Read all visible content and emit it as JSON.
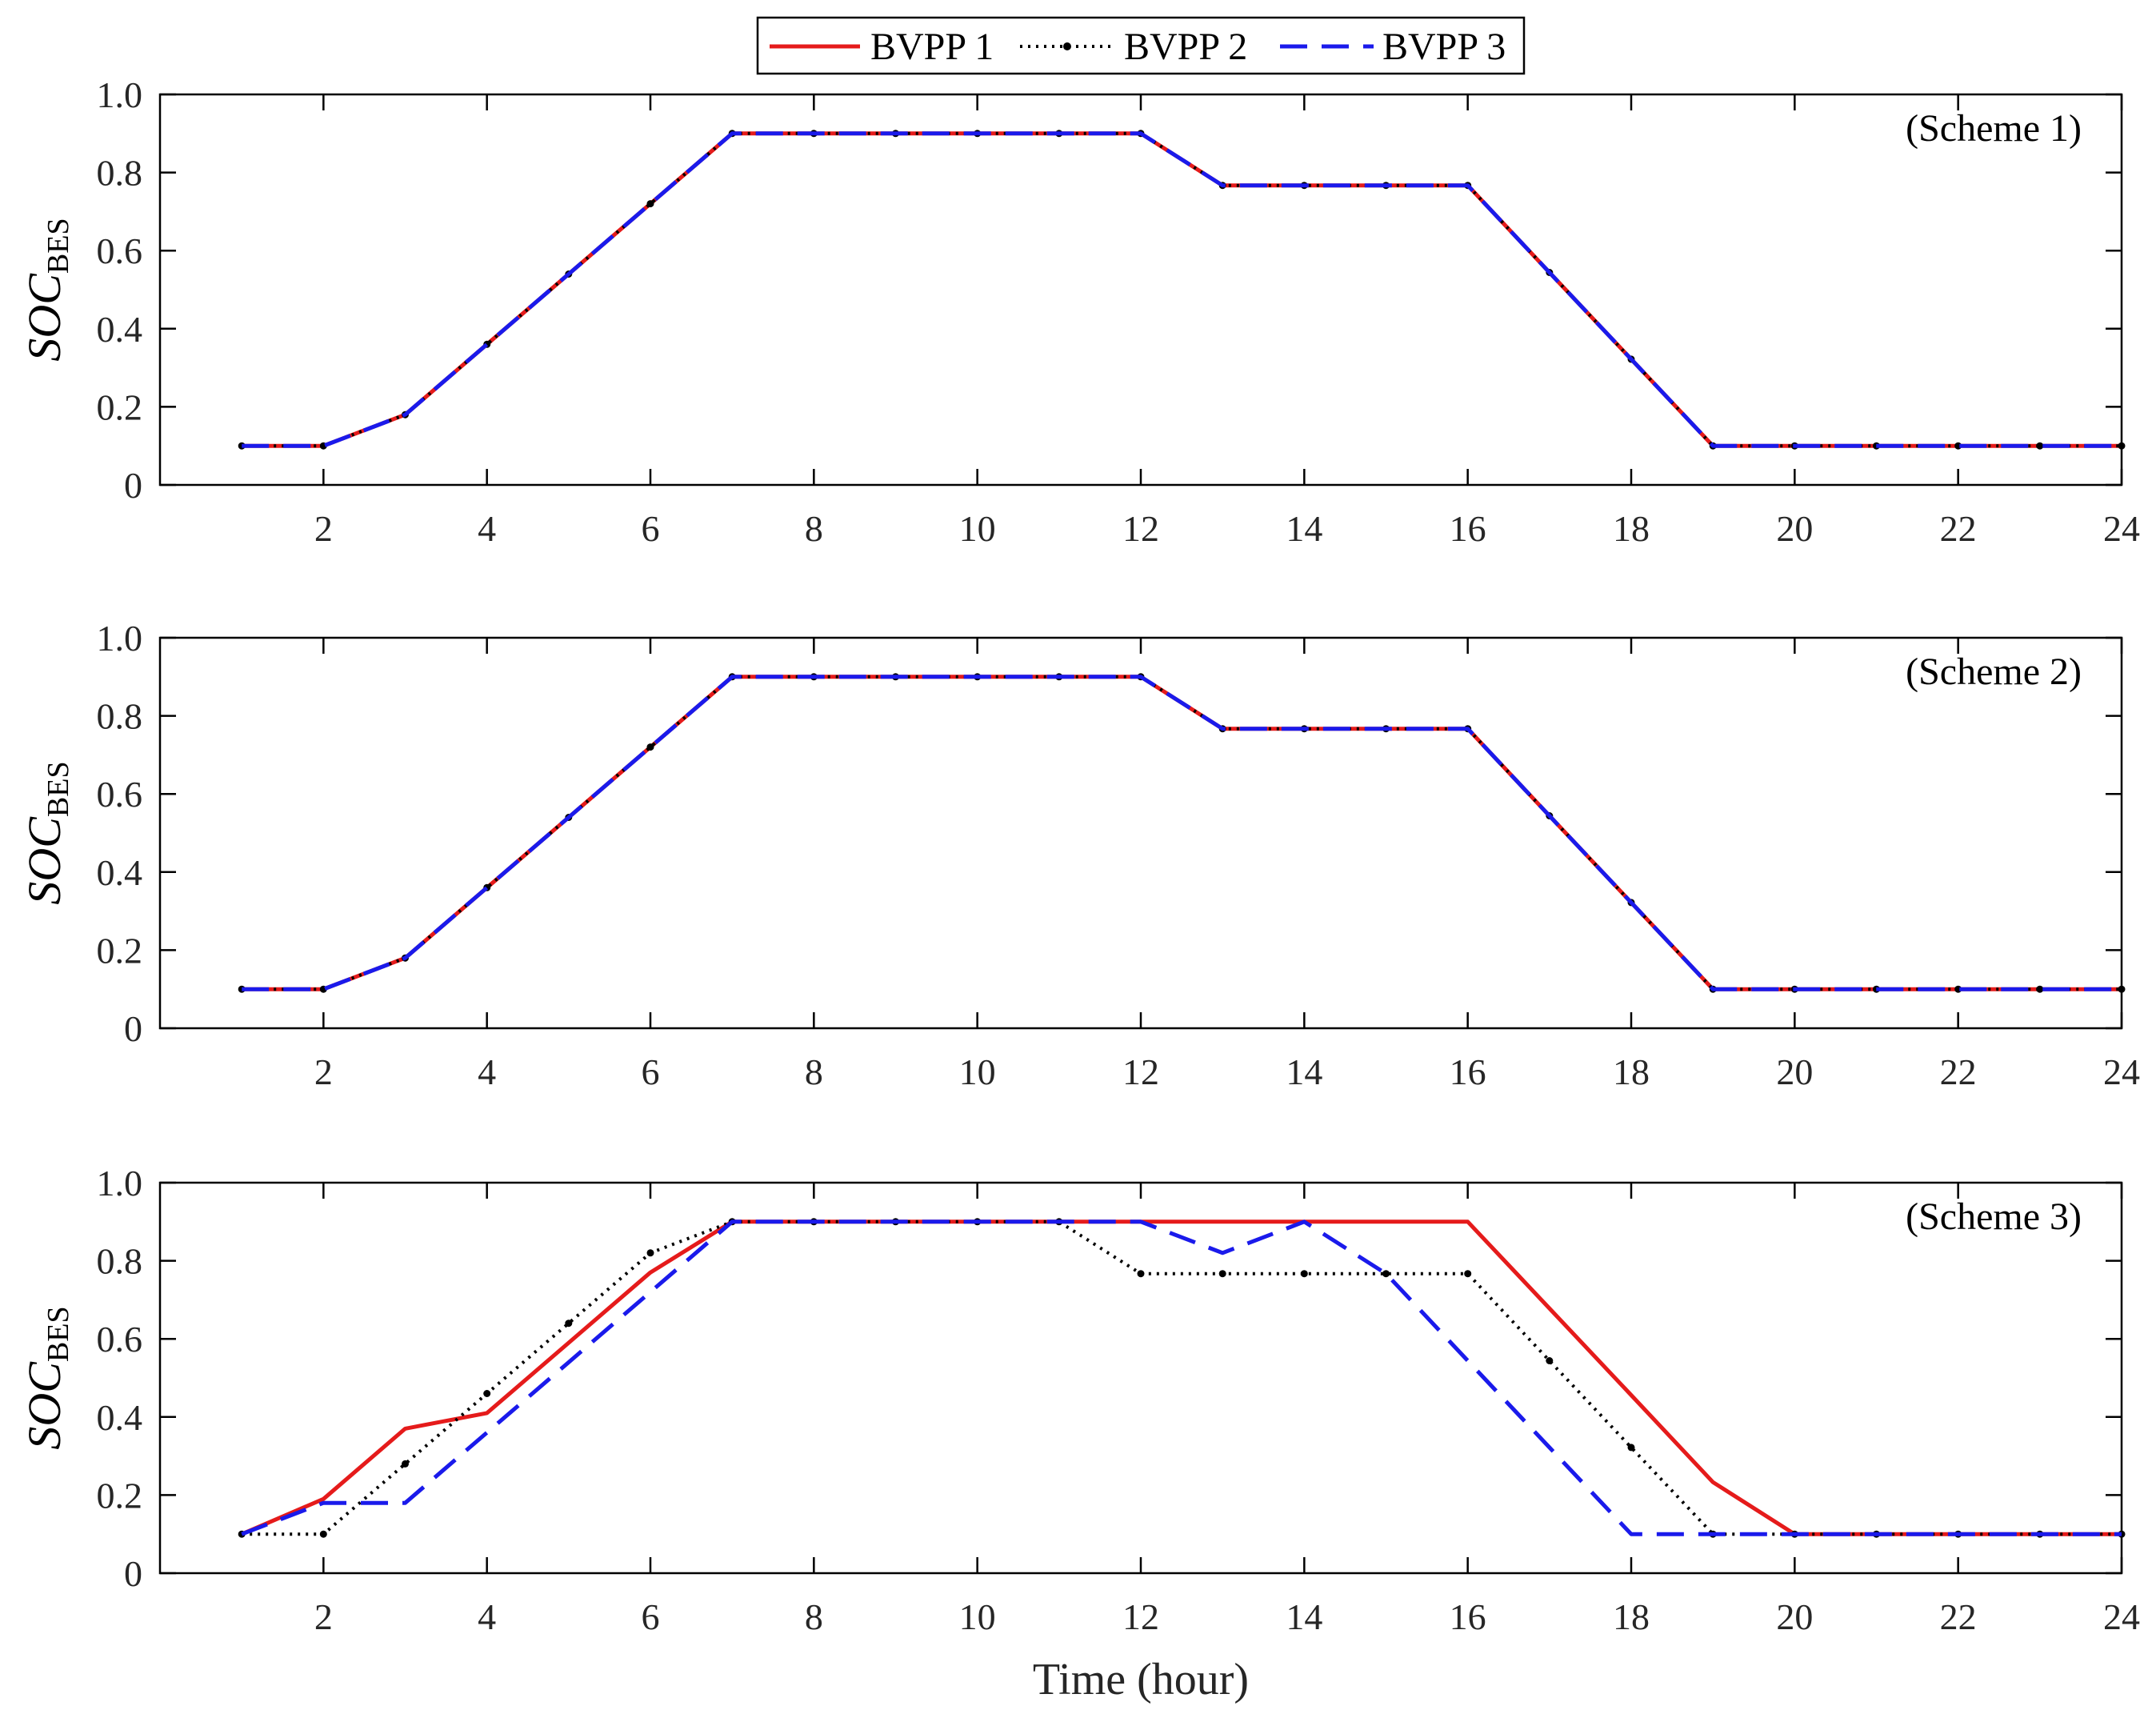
{
  "chart_data": [
    {
      "type": "line",
      "annotation": "(Scheme 1)",
      "ylabel_main": "SOC",
      "ylabel_sub": "BES",
      "xlabel": "",
      "xlim": [
        0,
        24
      ],
      "ylim": [
        0,
        1
      ],
      "x": [
        1,
        2,
        3,
        4,
        5,
        6,
        7,
        8,
        9,
        10,
        11,
        12,
        13,
        14,
        15,
        16,
        17,
        18,
        19,
        20,
        21,
        22,
        23,
        24
      ],
      "series": [
        {
          "name": "BVPP 1",
          "values": [
            0.1,
            0.1,
            0.18,
            0.36,
            0.54,
            0.72,
            0.9,
            0.9,
            0.9,
            0.9,
            0.9,
            0.9,
            0.767,
            0.767,
            0.767,
            0.767,
            0.544,
            0.322,
            0.1,
            0.1,
            0.1,
            0.1,
            0.1,
            0.1
          ]
        },
        {
          "name": "BVPP 2",
          "values": [
            0.1,
            0.1,
            0.18,
            0.36,
            0.54,
            0.72,
            0.9,
            0.9,
            0.9,
            0.9,
            0.9,
            0.9,
            0.767,
            0.767,
            0.767,
            0.767,
            0.544,
            0.322,
            0.1,
            0.1,
            0.1,
            0.1,
            0.1,
            0.1
          ]
        },
        {
          "name": "BVPP 3",
          "values": [
            0.1,
            0.1,
            0.18,
            0.36,
            0.54,
            0.72,
            0.9,
            0.9,
            0.9,
            0.9,
            0.9,
            0.9,
            0.767,
            0.767,
            0.767,
            0.767,
            0.544,
            0.322,
            0.1,
            0.1,
            0.1,
            0.1,
            0.1,
            0.1
          ]
        }
      ]
    },
    {
      "type": "line",
      "annotation": "(Scheme 2)",
      "ylabel_main": "SOC",
      "ylabel_sub": "BES",
      "xlabel": "",
      "xlim": [
        0,
        24
      ],
      "ylim": [
        0,
        1
      ],
      "x": [
        1,
        2,
        3,
        4,
        5,
        6,
        7,
        8,
        9,
        10,
        11,
        12,
        13,
        14,
        15,
        16,
        17,
        18,
        19,
        20,
        21,
        22,
        23,
        24
      ],
      "series": [
        {
          "name": "BVPP 1",
          "values": [
            0.1,
            0.1,
            0.18,
            0.36,
            0.54,
            0.72,
            0.9,
            0.9,
            0.9,
            0.9,
            0.9,
            0.9,
            0.767,
            0.767,
            0.767,
            0.767,
            0.544,
            0.322,
            0.1,
            0.1,
            0.1,
            0.1,
            0.1,
            0.1
          ]
        },
        {
          "name": "BVPP 2",
          "values": [
            0.1,
            0.1,
            0.18,
            0.36,
            0.54,
            0.72,
            0.9,
            0.9,
            0.9,
            0.9,
            0.9,
            0.9,
            0.767,
            0.767,
            0.767,
            0.767,
            0.544,
            0.322,
            0.1,
            0.1,
            0.1,
            0.1,
            0.1,
            0.1
          ]
        },
        {
          "name": "BVPP 3",
          "values": [
            0.1,
            0.1,
            0.18,
            0.36,
            0.54,
            0.72,
            0.9,
            0.9,
            0.9,
            0.9,
            0.9,
            0.9,
            0.767,
            0.767,
            0.767,
            0.767,
            0.544,
            0.322,
            0.1,
            0.1,
            0.1,
            0.1,
            0.1,
            0.1
          ]
        }
      ]
    },
    {
      "type": "line",
      "annotation": "(Scheme 3)",
      "ylabel_main": "SOC",
      "ylabel_sub": "BES",
      "xlabel": "Time (hour)",
      "xlim": [
        0,
        24
      ],
      "ylim": [
        0,
        1
      ],
      "x": [
        1,
        2,
        3,
        4,
        5,
        6,
        7,
        8,
        9,
        10,
        11,
        12,
        13,
        14,
        15,
        16,
        17,
        18,
        19,
        20,
        21,
        22,
        23,
        24
      ],
      "series": [
        {
          "name": "BVPP 1",
          "values": [
            0.1,
            0.19,
            0.37,
            0.41,
            0.59,
            0.77,
            0.9,
            0.9,
            0.9,
            0.9,
            0.9,
            0.9,
            0.9,
            0.9,
            0.9,
            0.9,
            0.678,
            0.456,
            0.233,
            0.1,
            0.1,
            0.1,
            0.1,
            0.1
          ]
        },
        {
          "name": "BVPP 2",
          "values": [
            0.1,
            0.1,
            0.28,
            0.46,
            0.64,
            0.82,
            0.9,
            0.9,
            0.9,
            0.9,
            0.9,
            0.767,
            0.767,
            0.767,
            0.767,
            0.767,
            0.544,
            0.322,
            0.1,
            0.1,
            0.1,
            0.1,
            0.1,
            0.1
          ]
        },
        {
          "name": "BVPP 3",
          "values": [
            0.1,
            0.18,
            0.18,
            0.36,
            0.54,
            0.72,
            0.9,
            0.9,
            0.9,
            0.9,
            0.9,
            0.9,
            0.82,
            0.9,
            0.767,
            0.544,
            0.322,
            0.1,
            0.1,
            0.1,
            0.1,
            0.1,
            0.1,
            0.1
          ]
        }
      ]
    }
  ],
  "legend": {
    "entries": [
      "BVPP 1",
      "BVPP 2",
      "BVPP 3"
    ],
    "placement": "top-center"
  },
  "x_ticks": [
    2,
    4,
    6,
    8,
    10,
    12,
    14,
    16,
    18,
    20,
    22,
    24
  ],
  "x_tick_labels": [
    "2",
    "4",
    "6",
    "8",
    "10",
    "12",
    "14",
    "16",
    "18",
    "20",
    "22",
    "24"
  ],
  "y_ticks": [
    0,
    0.2,
    0.4,
    0.6,
    0.8,
    1.0
  ],
  "y_tick_labels": [
    "0",
    "0.2",
    "0.4",
    "0.6",
    "0.8",
    "1.0"
  ],
  "colors": {
    "bvpp1": "#e51b1b",
    "bvpp2": "#000000",
    "bvpp3": "#1a1aeb",
    "axes": "#000000"
  }
}
